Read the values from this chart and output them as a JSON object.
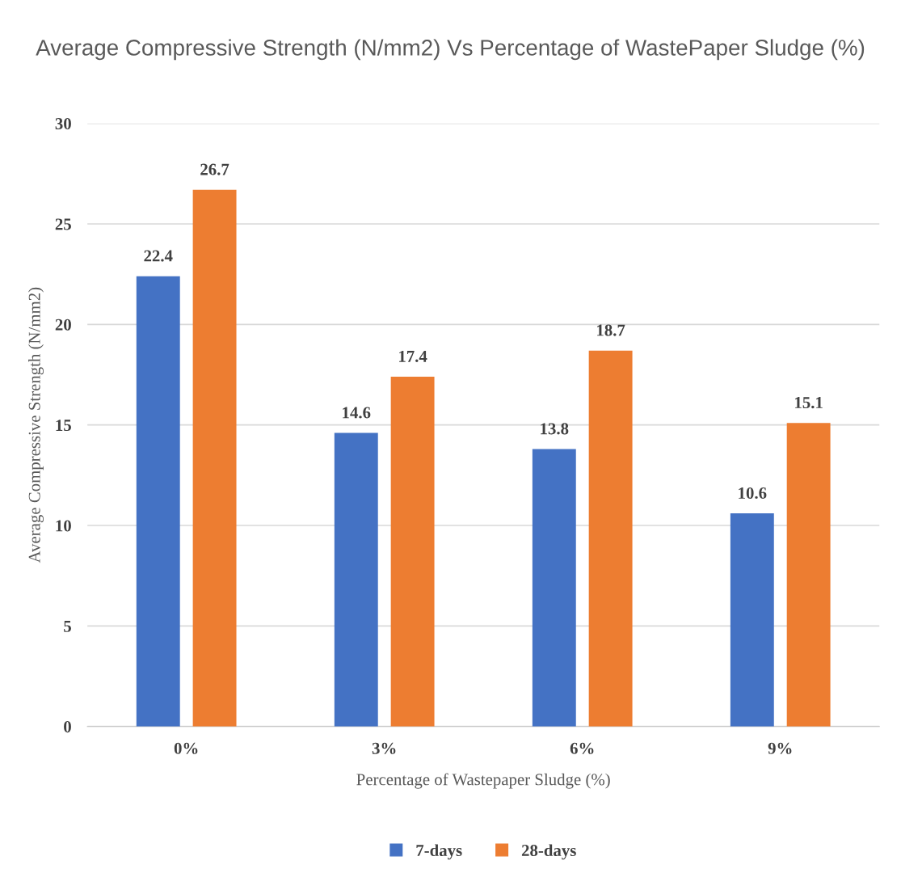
{
  "chart_data": {
    "type": "bar",
    "title": "Average Compressive Strength (N/mm2) Vs Percentage of WastePaper Sludge (%)",
    "xlabel": "Percentage of Wastepaper Sludge (%)",
    "ylabel": "Average Compressive Strength (N/mm2)",
    "categories": [
      "0%",
      "3%",
      "6%",
      "9%"
    ],
    "series": [
      {
        "name": "7-days",
        "color": "#4472c4",
        "values": [
          22.4,
          14.6,
          13.8,
          10.6
        ]
      },
      {
        "name": "28-days",
        "color": "#ed7d31",
        "values": [
          26.7,
          17.4,
          18.7,
          15.1
        ]
      }
    ],
    "ylim": [
      0,
      30
    ],
    "yticks": [
      0,
      5,
      10,
      15,
      20,
      25,
      30
    ],
    "grid": "y",
    "legend": "bottom",
    "data_labels": true
  }
}
